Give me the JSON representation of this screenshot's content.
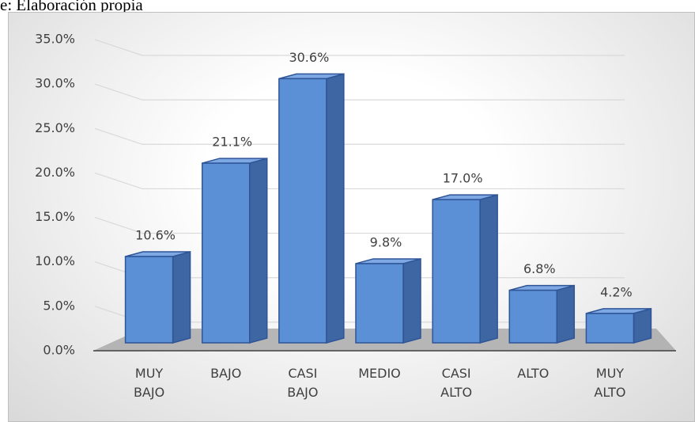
{
  "chart_data": {
    "type": "bar",
    "caption": "e: Elaboración propia",
    "categories": [
      "MUY BAJO",
      "BAJO",
      "CASI BAJO",
      "MEDIO",
      "CASI ALTO",
      "ALTO",
      "MUY ALTO"
    ],
    "values": [
      10.6,
      21.1,
      30.6,
      9.8,
      17.0,
      6.8,
      4.2
    ],
    "value_labels": [
      "10.6%",
      "21.1%",
      "30.6%",
      "9.8%",
      "17.0%",
      "6.8%",
      "4.2%"
    ],
    "color": "#5b8fd6",
    "ylim": [
      0,
      35
    ],
    "yticks": [
      {
        "value": 0,
        "label": "0.0%"
      },
      {
        "value": 5,
        "label": "5.0%"
      },
      {
        "value": 10,
        "label": "10.0%"
      },
      {
        "value": 15,
        "label": "15.0%"
      },
      {
        "value": 20,
        "label": "20.0%"
      },
      {
        "value": 25,
        "label": "25.0%"
      },
      {
        "value": 30,
        "label": "30.0%"
      },
      {
        "value": 35,
        "label": "35.0%"
      }
    ],
    "grid": true
  }
}
